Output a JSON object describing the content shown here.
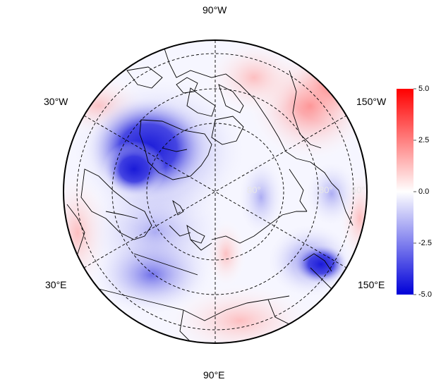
{
  "map": {
    "projection": "north-polar-stereographic",
    "graticule_style": "dashed",
    "coastline_color": "#000000"
  },
  "longitude_labels": {
    "top": "90°W",
    "upper_left": "30°W",
    "upper_right": "150°W",
    "lower_left": "30°E",
    "lower_right": "150°E",
    "bottom": "90°E"
  },
  "latitude_labels": {
    "inner_left": "80°",
    "inner_right": "80°",
    "outer_right": "60°"
  },
  "colorbar": {
    "ticks": [
      "5.0",
      "2.5",
      "0.0",
      "-2.5",
      "-5.0"
    ],
    "min_value": -5.0,
    "max_value": 5.0,
    "color_max": "#ff0000",
    "color_mid": "#ffffff",
    "color_min": "#0000d8"
  }
}
